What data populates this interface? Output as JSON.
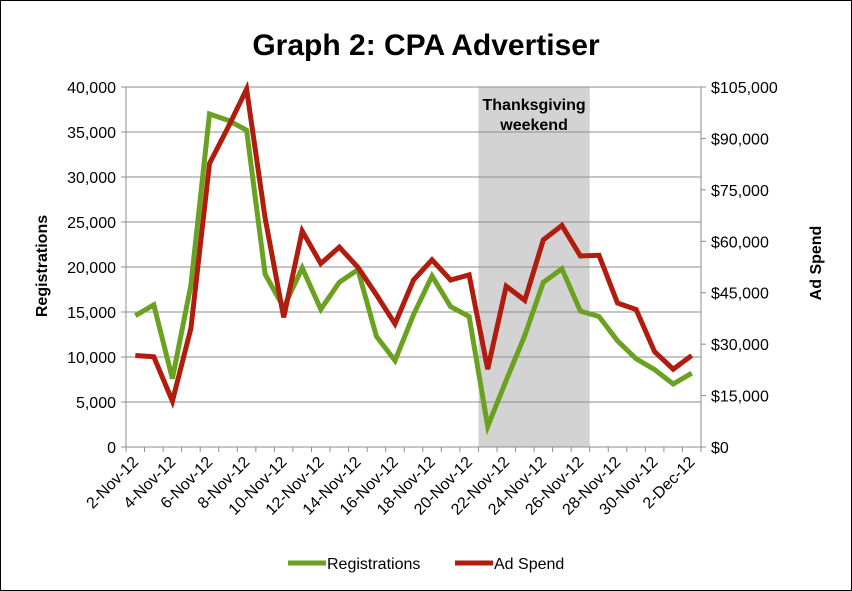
{
  "chart_data": {
    "type": "line",
    "title": "Graph 2: CPA Advertiser",
    "xlabel": "",
    "ylabel": "Registrations",
    "y2label": "Ad Spend",
    "ylim": [
      0,
      40000
    ],
    "y2lim": [
      0,
      105000
    ],
    "yticks": [
      "0",
      "5,000",
      "10,000",
      "15,000",
      "20,000",
      "25,000",
      "30,000",
      "35,000",
      "40,000"
    ],
    "y2ticks": [
      "$0",
      "$15,000",
      "$30,000",
      "$45,000",
      "$60,000",
      "$75,000",
      "$90,000",
      "$105,000"
    ],
    "x": [
      "2-Nov-12",
      "3-Nov-12",
      "4-Nov-12",
      "5-Nov-12",
      "6-Nov-12",
      "7-Nov-12",
      "8-Nov-12",
      "9-Nov-12",
      "10-Nov-12",
      "11-Nov-12",
      "12-Nov-12",
      "13-Nov-12",
      "14-Nov-12",
      "15-Nov-12",
      "16-Nov-12",
      "17-Nov-12",
      "18-Nov-12",
      "19-Nov-12",
      "20-Nov-12",
      "21-Nov-12",
      "22-Nov-12",
      "23-Nov-12",
      "24-Nov-12",
      "25-Nov-12",
      "26-Nov-12",
      "27-Nov-12",
      "28-Nov-12",
      "29-Nov-12",
      "30-Nov-12",
      "1-Dec-12",
      "2-Dec-12"
    ],
    "xticks_shown": [
      "2-Nov-12",
      "4-Nov-12",
      "6-Nov-12",
      "8-Nov-12",
      "10-Nov-12",
      "12-Nov-12",
      "14-Nov-12",
      "16-Nov-12",
      "18-Nov-12",
      "20-Nov-12",
      "22-Nov-12",
      "24-Nov-12",
      "26-Nov-12",
      "28-Nov-12",
      "30-Nov-12",
      "2-Dec-12"
    ],
    "series": [
      {
        "name": "Registrations",
        "axis": "left",
        "color": "#6aa121",
        "values": [
          14600,
          15800,
          7600,
          18000,
          37000,
          36300,
          35200,
          19200,
          15500,
          19900,
          15300,
          18300,
          19700,
          12300,
          9600,
          14700,
          19000,
          15600,
          14500,
          2300,
          7400,
          12400,
          18300,
          19800,
          15100,
          14500,
          11800,
          9800,
          8600,
          7000,
          8200
        ]
      },
      {
        "name": "Ad Spend",
        "axis": "right",
        "color": "#b01c0e",
        "values": [
          26700,
          26300,
          13400,
          34600,
          82700,
          93200,
          104400,
          66800,
          37800,
          63000,
          53500,
          58300,
          52400,
          44400,
          35900,
          48700,
          54600,
          48700,
          50200,
          22700,
          46900,
          42800,
          60400,
          64600,
          55700,
          55900,
          42000,
          40100,
          27800,
          22700,
          26700
        ]
      }
    ],
    "shaded_region": {
      "from": "21-Nov-12",
      "to": "26-Nov-12",
      "color": "#d3d3d3",
      "label": "Thanksgiving weekend",
      "label_lines": [
        "Thanksgiving",
        "weekend"
      ]
    },
    "grid": true,
    "legend": "bottom"
  }
}
